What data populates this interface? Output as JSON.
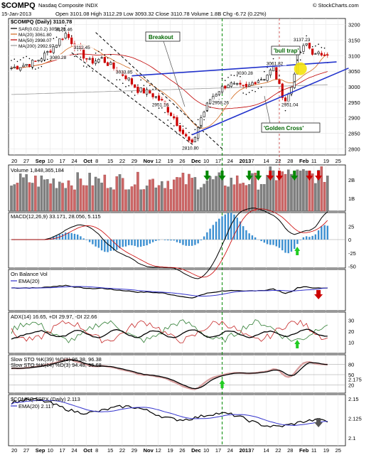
{
  "header": {
    "symbol": "$COMPQ",
    "name": "Nasdaq Composite INDX",
    "source": "© StockCharts.com",
    "date": "15-Jan-2013",
    "stats": "Open 3101.08   High 3112.29   Low 3093.32   Close 3110.78   Volume 1.8B   Chg -6.72 (0.22%)"
  },
  "chart_data": [
    {
      "type": "candlestick",
      "panel": "price",
      "label": "$COMPQ (Daily) 3110.78",
      "legend": [
        {
          "name": "SAR(0.02,0.2) 3058.28",
          "color": "#000000"
        },
        {
          "name": "MA(20) 3061.80",
          "color": "#d2691e"
        },
        {
          "name": "MA(50) 2998.07",
          "color": "#c00000"
        },
        {
          "name": "MA(200) 2992.97",
          "color": "#999999"
        }
      ],
      "y_ticks": [
        2800,
        2850,
        2900,
        2950,
        3000,
        3050,
        3100,
        3150,
        3200
      ],
      "ylim": [
        2780,
        3220
      ],
      "price_labels": [
        "3171.46",
        "3112.45",
        "3080.28",
        "3033.85",
        "3030.28",
        "3061.82",
        "3137.23",
        "2951.16",
        "2958.26",
        "2951.04",
        "2810.80"
      ],
      "annotations": [
        "Breakout",
        "'bull trap'",
        "'Golden Cross'"
      ]
    },
    {
      "type": "bar",
      "panel": "volume",
      "label": "Volume 1,848,365,184",
      "y_ticks": [
        "2B",
        "1B"
      ]
    },
    {
      "type": "line",
      "panel": "macd",
      "label": "MACD(12,26,9) 33.171, 28.056, 5.115",
      "y_ticks": [
        25,
        0,
        -25,
        -50
      ]
    },
    {
      "type": "line",
      "panel": "obv",
      "label": "On Balance Vol",
      "legend": [
        {
          "name": "EMA(20)",
          "color": "#3333cc"
        }
      ]
    },
    {
      "type": "line",
      "panel": "adx",
      "label": "ADX(14) 16.65, +DI 29.97, -DI 22.66",
      "y_ticks": [
        30,
        20,
        10
      ]
    },
    {
      "type": "line",
      "panel": "sto",
      "label": "Slow STO %K(39) %D(1) 96.38, 96.38",
      "label2": "Slow STO %K(14) %D(3) 94.48, 95.68",
      "y_ticks": [
        80,
        50,
        20
      ]
    },
    {
      "type": "line",
      "panel": "ratio",
      "label": "$COMPQ:$SPX (Daily) 2.113",
      "legend": [
        {
          "name": "EMA(20) 2.117",
          "color": "#3333cc"
        }
      ],
      "y_ticks": [
        2.175,
        2.15,
        2.125,
        2.1
      ]
    }
  ],
  "x_ticks": [
    "20",
    "27",
    "Sep",
    "10",
    "17",
    "24",
    "Oct",
    "8",
    "15",
    "22",
    "29",
    "Nov",
    "12",
    "19",
    "26",
    "Dec",
    "10",
    "17",
    "24",
    "2013",
    "7",
    "14",
    "22",
    "28",
    "Feb",
    "11",
    "19",
    "25"
  ],
  "colors": {
    "up": "#000000",
    "down": "#cc0000",
    "vol_up": "#808080",
    "vol_down": "#cc6666",
    "ema": "#3333cc",
    "guide": "#008800",
    "red_guide": "#cc3333"
  }
}
